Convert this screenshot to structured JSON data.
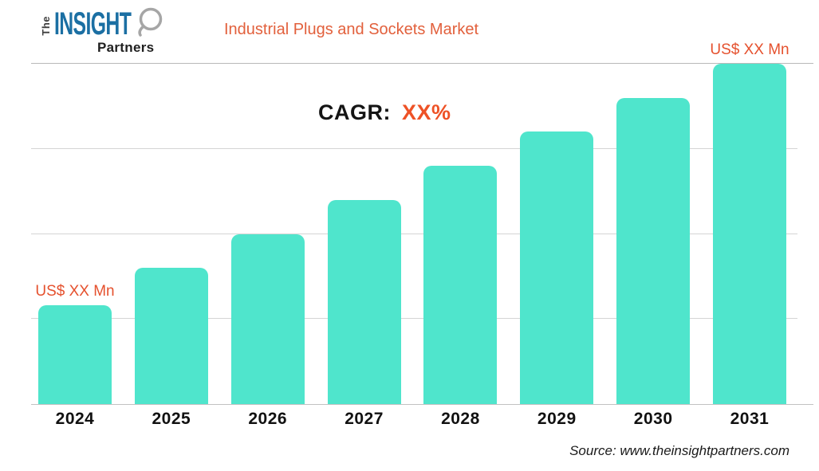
{
  "header": {
    "logo": {
      "word_the": "The",
      "word_insight": "INSIGHT",
      "word_partners": "Partners"
    },
    "title": "Industrial Plugs and Sockets Market"
  },
  "cagr": {
    "label": "CAGR:",
    "value": "XX%"
  },
  "footer": {
    "source": "Source: www.theinsightpartners.com"
  },
  "colors": {
    "bar": "#4fe5cc",
    "title_orange": "#e2603c",
    "accent_orange": "#ee5226",
    "label_orange": "#e5512e",
    "logo_blue": "#1b6fa3",
    "gridline": "#d4d4d4",
    "axis": "#c2c2c2",
    "text_dark": "#141414"
  },
  "chart_data": {
    "type": "bar",
    "title": "Industrial Plugs and Sockets Market",
    "categories": [
      "2024",
      "2025",
      "2026",
      "2027",
      "2028",
      "2029",
      "2030",
      "2031"
    ],
    "values": [
      29,
      40,
      50,
      60,
      70,
      80,
      90,
      100
    ],
    "unit": "US$ Mn (actual figures masked as XX in the image)",
    "xlabel": "",
    "ylabel": "",
    "ylim": [
      0,
      100
    ],
    "gridlines": [
      0,
      25,
      50,
      75,
      100
    ],
    "grid": "horizontal",
    "legend": "none",
    "bar_color": "#4fe5cc",
    "bar_value_labels": [
      {
        "index": 0,
        "text": "US$ XX Mn"
      },
      {
        "index": 7,
        "text": "US$ XX Mn"
      }
    ],
    "annotation": "CAGR: XX%"
  }
}
